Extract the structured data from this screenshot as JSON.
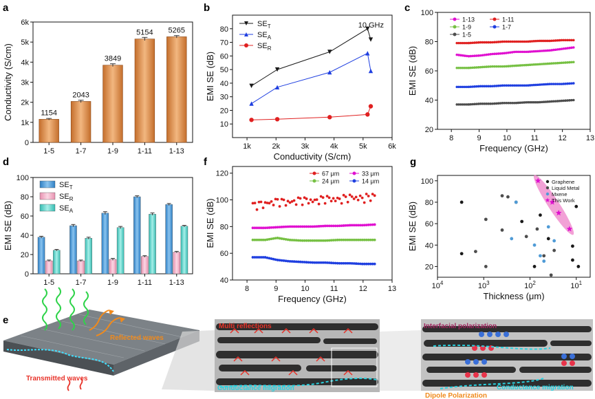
{
  "colors": {
    "bar_orange": "#e0995f",
    "bar_blue": "#4f9bd6",
    "bar_pink": "#f3b3c8",
    "bar_teal": "#6fd6cc",
    "black": "#1a1a1a",
    "blue": "#1f3fe0",
    "red": "#e02020",
    "magenta": "#e010d0",
    "green": "#76c043",
    "gray": "#4d4d4d",
    "ellipse": "#ee82c8",
    "red_text": "#e8332a",
    "cyan_text": "#2ad2e0",
    "orange_text": "#f08a1c",
    "purple_text": "#a0265f"
  },
  "chart_data": [
    {
      "panel": "a",
      "type": "bar",
      "categories": [
        "1-5",
        "1-7",
        "1-9",
        "1-11",
        "1-13"
      ],
      "values": [
        1154,
        2043,
        3849,
        5154,
        5265
      ],
      "errors": [
        40,
        60,
        70,
        80,
        60
      ],
      "value_labels": [
        "1154",
        "2043",
        "3849",
        "5154",
        "5265"
      ],
      "xlabel": "",
      "ylabel": "Conductivity (S/cm)",
      "ylim": [
        0,
        6000
      ],
      "yticks": [
        0,
        1000,
        2000,
        3000,
        4000,
        5000,
        6000
      ],
      "ytick_labels": [
        "0",
        "1k",
        "2k",
        "3k",
        "4k",
        "5k",
        "6k"
      ]
    },
    {
      "panel": "b",
      "type": "line",
      "title": "10 GHz",
      "xlabel": "Conductivity (S/cm)",
      "ylabel": "EMI SE (dB)",
      "xlim": [
        500,
        6000
      ],
      "ylim": [
        0,
        90
      ],
      "xticks": [
        1000,
        2000,
        3000,
        4000,
        5000,
        6000
      ],
      "xtick_labels": [
        "1k",
        "2k",
        "3k",
        "4k",
        "5k",
        "6k"
      ],
      "yticks": [
        10,
        20,
        30,
        40,
        50,
        60,
        70,
        80
      ],
      "ytick_labels": [
        "10",
        "20",
        "30",
        "40",
        "50",
        "60",
        "70",
        "80"
      ],
      "x": [
        1154,
        2043,
        3849,
        5154,
        5265
      ],
      "series": [
        {
          "name": "SE_T",
          "label_main": "SE",
          "label_sub": "T",
          "marker": "triangle-down",
          "color": "black",
          "values": [
            38,
            50,
            63,
            80,
            72
          ]
        },
        {
          "name": "SE_A",
          "label_main": "SE",
          "label_sub": "A",
          "marker": "triangle-up",
          "color": "blue",
          "values": [
            25,
            37,
            48,
            62,
            49
          ]
        },
        {
          "name": "SE_R",
          "label_main": "SE",
          "label_sub": "R",
          "marker": "circle",
          "color": "red",
          "values": [
            13,
            13.5,
            15,
            17,
            23
          ]
        }
      ]
    },
    {
      "panel": "c",
      "type": "line",
      "xlabel": "Frequency (GHz)",
      "ylabel": "EMI SE (dB)",
      "xlim": [
        7.5,
        13
      ],
      "ylim": [
        20,
        100
      ],
      "xticks": [
        8,
        9,
        10,
        11,
        12,
        13
      ],
      "yticks": [
        20,
        40,
        60,
        80,
        100
      ],
      "x_range": [
        8.2,
        12.4
      ],
      "series": [
        {
          "name": "1-13",
          "color": "magenta",
          "values": [
            71,
            70,
            70.5,
            71.5,
            72,
            73,
            73,
            73.5,
            74,
            75,
            76
          ]
        },
        {
          "name": "1-11",
          "color": "red",
          "values": [
            79,
            79,
            79.5,
            79.5,
            80,
            80,
            80,
            80.5,
            80.5,
            81,
            81
          ]
        },
        {
          "name": "1-9",
          "color": "green",
          "values": [
            62,
            62,
            62.5,
            63,
            63,
            63.5,
            64,
            64.5,
            65,
            65.5,
            66
          ]
        },
        {
          "name": "1-7",
          "color": "blue",
          "values": [
            49,
            49,
            49.5,
            49.5,
            50,
            50,
            50,
            50.5,
            51,
            51,
            51.5
          ]
        },
        {
          "name": "1-5",
          "color": "gray",
          "values": [
            37,
            37,
            37.5,
            37.5,
            38,
            38,
            38.5,
            38.5,
            39,
            39.5,
            40
          ]
        }
      ]
    },
    {
      "panel": "d",
      "type": "bar",
      "xlabel": "",
      "ylabel": "EMI SE (dB)",
      "ylim": [
        0,
        100
      ],
      "yticks": [
        0,
        20,
        40,
        60,
        80,
        100
      ],
      "categories": [
        "1-5",
        "1-7",
        "1-9",
        "1-11",
        "1-13"
      ],
      "series": [
        {
          "name": "SE_T",
          "label_main": "SE",
          "label_sub": "T",
          "color": "bar_blue",
          "values": [
            38,
            50,
            63,
            80,
            72
          ],
          "errors": [
            1,
            1.2,
            1.5,
            1,
            1
          ]
        },
        {
          "name": "SE_R",
          "label_main": "SE",
          "label_sub": "R",
          "color": "bar_pink",
          "values": [
            13.5,
            13.5,
            15,
            18,
            22.5
          ],
          "errors": [
            0.8,
            0.8,
            1,
            0.8,
            0.8
          ]
        },
        {
          "name": "SE_A",
          "label_main": "SE",
          "label_sub": "A",
          "color": "bar_teal",
          "values": [
            24.5,
            37,
            48,
            62,
            49.5
          ],
          "errors": [
            0.8,
            1,
            1.2,
            1.2,
            0.8
          ]
        }
      ]
    },
    {
      "panel": "f",
      "type": "line",
      "xlabel": "Frequency (GHz)",
      "ylabel": "EMI SE (dB)",
      "xlim": [
        7.5,
        13
      ],
      "ylim": [
        40,
        125
      ],
      "xticks": [
        8,
        9,
        10,
        11,
        12,
        13
      ],
      "yticks": [
        40,
        60,
        80,
        100,
        120
      ],
      "x_range": [
        8.2,
        12.4
      ],
      "series": [
        {
          "name": "67 μm",
          "color": "red",
          "values": [
            96,
            97,
            99,
            98,
            100,
            99,
            101,
            100,
            102,
            101,
            103
          ]
        },
        {
          "name": "33 μm",
          "color": "magenta",
          "values": [
            79,
            79,
            79.5,
            80,
            80,
            80,
            80.5,
            80.5,
            81,
            81,
            81.5
          ]
        },
        {
          "name": "24 μm",
          "color": "green",
          "values": [
            70,
            70,
            71.5,
            70,
            69.5,
            69.5,
            69.5,
            70,
            70,
            70,
            70
          ]
        },
        {
          "name": "14 μm",
          "color": "blue",
          "values": [
            57,
            57,
            55,
            54,
            53.5,
            53,
            53,
            52.5,
            52.5,
            52,
            52
          ]
        }
      ]
    },
    {
      "panel": "g",
      "type": "scatter",
      "xlabel": "Thickness (μm)",
      "ylabel": "EMI SE (dB)",
      "xscale": "log-reversed",
      "xlim": [
        10000,
        5
      ],
      "ylim": [
        10,
        105
      ],
      "xticks": [
        10000,
        1000,
        100,
        10
      ],
      "xtick_labels_base": [
        "10",
        "10",
        "10",
        "10"
      ],
      "xtick_labels_exp": [
        "4",
        "3",
        "2",
        "1"
      ],
      "yticks": [
        20,
        40,
        60,
        80,
        100
      ],
      "series": [
        {
          "name": "Graphene",
          "color": "black",
          "marker": "circle",
          "points": [
            [
              3000,
              32
            ],
            [
              3000,
              80
            ],
            [
              200,
              80
            ],
            [
              150,
              62
            ],
            [
              80,
              20
            ],
            [
              60,
              68
            ],
            [
              40,
              46
            ],
            [
              12,
              39
            ],
            [
              12,
              26
            ],
            [
              9,
              20
            ],
            [
              10,
              76
            ]
          ]
        },
        {
          "name": "Liquid Metal",
          "color": "gray",
          "marker": "circle",
          "points": [
            [
              1500,
              34
            ],
            [
              900,
              64
            ],
            [
              900,
              20
            ],
            [
              400,
              86
            ],
            [
              400,
              54
            ],
            [
              300,
              85
            ],
            [
              120,
              48
            ],
            [
              70,
              55
            ],
            [
              50,
              30
            ],
            [
              30,
              35
            ],
            [
              35,
              12
            ]
          ]
        },
        {
          "name": "Mxene",
          "color": "bar_blue",
          "marker": "circle",
          "points": [
            [
              250,
              46
            ],
            [
              200,
              80
            ],
            [
              80,
              40
            ],
            [
              60,
              30
            ],
            [
              50,
              25
            ],
            [
              40,
              57
            ],
            [
              30,
              44
            ]
          ]
        },
        {
          "name": "This Work",
          "color": "magenta",
          "marker": "star",
          "points": [
            [
              67,
              100
            ],
            [
              33,
              80
            ],
            [
              24,
              70
            ],
            [
              14,
              55
            ]
          ]
        }
      ]
    }
  ],
  "panel_labels": {
    "a": "a",
    "b": "b",
    "c": "c",
    "d": "d",
    "e": "e",
    "f": "f",
    "g": "g"
  },
  "schematic": {
    "reflected_waves": "Reflected waves",
    "transmitted_waves": "Transmitted waves",
    "multi_reflections": "Multi reflections",
    "conductance_migration_1": "Conductance migration",
    "interfacial_polarization": "Interfacial polarization",
    "conductance_migration_2": "Conductance migration",
    "dipole_polarization": "Dipole Polarization"
  }
}
